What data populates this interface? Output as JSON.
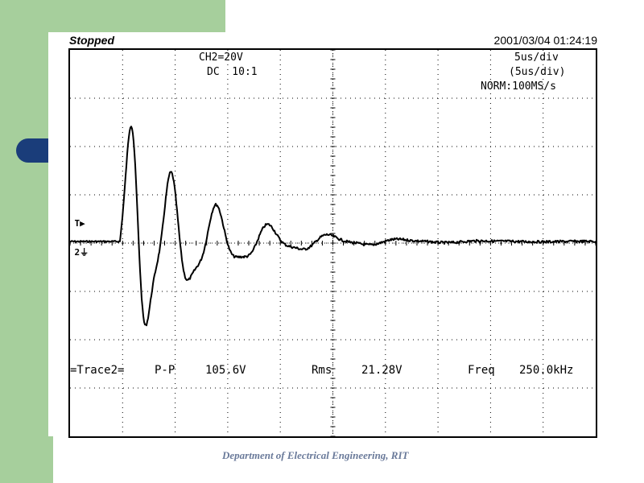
{
  "slide": {
    "footer": "Department of Electrical Engineering, RIT"
  },
  "scope": {
    "status": "Stopped",
    "timestamp": "2001/03/04  01:24:19",
    "channel": {
      "scale": "CH2=20V",
      "coupling": "DC  10:1"
    },
    "timebase": {
      "main": "5us/div",
      "delayed": "(5us/div)",
      "mode": "NORM:100MS/s"
    },
    "measurements": {
      "trace": "=Trace2=",
      "pp_label": "P-P",
      "pp_value": "105.6V",
      "rms_label": "Rms",
      "rms_value": "21.28V",
      "freq_label": "Freq",
      "freq_value": "250.0kHz"
    },
    "markers": {
      "trigger": "T",
      "channel": "2"
    }
  },
  "colors": {
    "slide_accent": "#a6cf9c",
    "pill": "#1a3d7a",
    "trace": "#000000",
    "footer_text": "#6a7a9a"
  }
}
